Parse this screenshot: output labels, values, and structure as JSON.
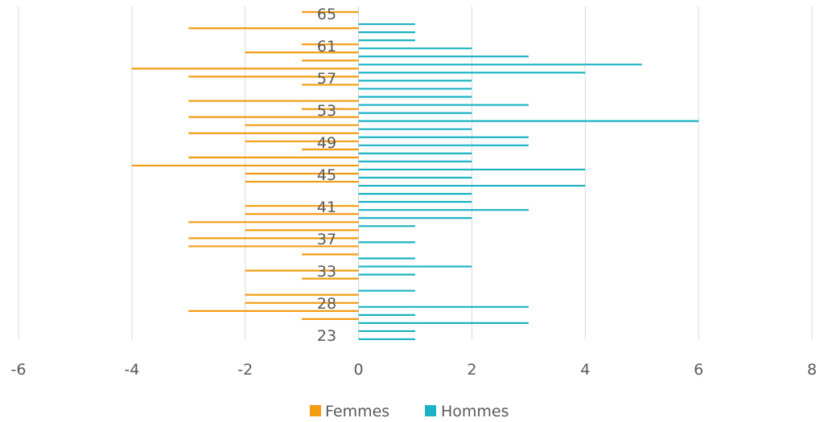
{
  "chart_data": {
    "type": "bar",
    "orientation": "horizontal",
    "xlim": [
      -6,
      8
    ],
    "x_ticks": [
      "-6",
      "-4",
      "-2",
      "0",
      "2",
      "4",
      "6",
      "8"
    ],
    "grid": "vertical",
    "legend_position": "bottom",
    "age_labels": [
      "65",
      "61",
      "57",
      "53",
      "49",
      "45",
      "41",
      "37",
      "33",
      "28",
      "23"
    ],
    "rows": [
      {
        "f": -1,
        "h": 0
      },
      {
        "f": 0,
        "h": 1
      },
      {
        "f": -3,
        "h": 1
      },
      {
        "f": 0,
        "h": 1
      },
      {
        "f": -1,
        "h": 2
      },
      {
        "f": -2,
        "h": 3
      },
      {
        "f": -1,
        "h": 5
      },
      {
        "f": -4,
        "h": 4
      },
      {
        "f": -3,
        "h": 2
      },
      {
        "f": -1,
        "h": 2
      },
      {
        "f": 0,
        "h": 2
      },
      {
        "f": -3,
        "h": 3
      },
      {
        "f": -1,
        "h": 2
      },
      {
        "f": -3,
        "h": 6
      },
      {
        "f": -2,
        "h": 2
      },
      {
        "f": -3,
        "h": 3
      },
      {
        "f": -2,
        "h": 3
      },
      {
        "f": -1,
        "h": 2
      },
      {
        "f": -3,
        "h": 2
      },
      {
        "f": -4,
        "h": 4
      },
      {
        "f": -2,
        "h": 2
      },
      {
        "f": -2,
        "h": 4
      },
      {
        "f": 0,
        "h": 2
      },
      {
        "f": 0,
        "h": 2
      },
      {
        "f": -2,
        "h": 3
      },
      {
        "f": -2,
        "h": 2
      },
      {
        "f": -3,
        "h": 1
      },
      {
        "f": -2,
        "h": 0
      },
      {
        "f": -3,
        "h": 1
      },
      {
        "f": -3,
        "h": 0
      },
      {
        "f": -1,
        "h": 1
      },
      {
        "f": 0,
        "h": 2
      },
      {
        "f": -2,
        "h": 1
      },
      {
        "f": -1,
        "h": 0
      },
      {
        "f": 0,
        "h": 1
      },
      {
        "f": -2,
        "h": 0
      },
      {
        "f": -2,
        "h": 3
      },
      {
        "f": -3,
        "h": 1
      },
      {
        "f": -1,
        "h": 3
      },
      {
        "f": 0,
        "h": 1
      },
      {
        "f": 0,
        "h": 1
      }
    ],
    "series": [
      {
        "name": "Femmes",
        "color": "#F39C12"
      },
      {
        "name": "Hommes",
        "color": "#1BB3C4"
      }
    ]
  }
}
